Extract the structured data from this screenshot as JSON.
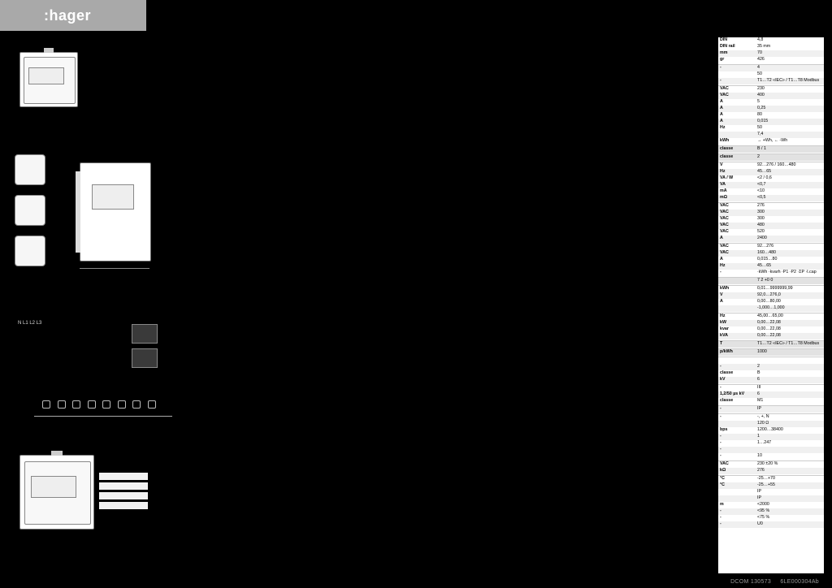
{
  "brand": {
    "name": ":hager"
  },
  "footer": {
    "left": "DCOM 130573",
    "right": "6LE000304Ab"
  },
  "spec_rows": [
    {
      "k": "DIN",
      "v": "4,8",
      "c": ""
    },
    {
      "k": "DIN rail",
      "v": "35 mm",
      "c": ""
    },
    {
      "k": "mm",
      "v": "70",
      "c": "alt"
    },
    {
      "k": "gr",
      "v": "426",
      "c": ""
    },
    {
      "k": "",
      "v": "",
      "c": "sep"
    },
    {
      "k": "-",
      "v": "4",
      "c": "alt"
    },
    {
      "k": "",
      "v": "50",
      "c": ""
    },
    {
      "k": "-",
      "v": "T1…T2 «IEC» / T1…T8 Modbus",
      "c": "alt"
    },
    {
      "k": "",
      "v": "",
      "c": "sep"
    },
    {
      "k": "VAC",
      "v": "230",
      "c": ""
    },
    {
      "k": "VAC",
      "v": "400",
      "c": "alt"
    },
    {
      "k": "A",
      "v": "5",
      "c": ""
    },
    {
      "k": "A",
      "v": "0,25",
      "c": "alt"
    },
    {
      "k": "A",
      "v": "80",
      "c": ""
    },
    {
      "k": "A",
      "v": "0,015",
      "c": "alt"
    },
    {
      "k": "Hz",
      "v": "50",
      "c": ""
    },
    {
      "k": "",
      "v": "7,4",
      "c": "alt"
    },
    {
      "k": "kWh",
      "v": "→ +Wh, ← -Wh",
      "c": ""
    },
    {
      "k": "",
      "v": "",
      "c": "sep"
    },
    {
      "k": "classe",
      "v": "B / 1",
      "c": "alt2"
    },
    {
      "k": "",
      "v": "",
      "c": "sep"
    },
    {
      "k": "classe",
      "v": "2",
      "c": "alt2"
    },
    {
      "k": "",
      "v": "",
      "c": "sep"
    },
    {
      "k": "V",
      "v": "92…276 / 160…480",
      "c": ""
    },
    {
      "k": "Hz",
      "v": "45…65",
      "c": "alt"
    },
    {
      "k": "VA / W",
      "v": "<2 / 0,6",
      "c": ""
    },
    {
      "k": "VA",
      "v": "<0,7",
      "c": "alt"
    },
    {
      "k": "mA",
      "v": "<10",
      "c": ""
    },
    {
      "k": "mΩ",
      "v": "<0,5",
      "c": "alt"
    },
    {
      "k": "",
      "v": "",
      "c": "sep"
    },
    {
      "k": "VAC",
      "v": "276",
      "c": ""
    },
    {
      "k": "VAC",
      "v": "300",
      "c": "alt"
    },
    {
      "k": "VAC",
      "v": "300",
      "c": ""
    },
    {
      "k": "VAC",
      "v": "480",
      "c": "alt"
    },
    {
      "k": "VAC",
      "v": "520",
      "c": ""
    },
    {
      "k": "A",
      "v": "2400",
      "c": "alt"
    },
    {
      "k": "",
      "v": "",
      "c": "sep"
    },
    {
      "k": "VAC",
      "v": "92…276",
      "c": ""
    },
    {
      "k": "VAC",
      "v": "160…480",
      "c": "alt"
    },
    {
      "k": "A",
      "v": "0,015…80",
      "c": ""
    },
    {
      "k": "Hz",
      "v": "45…65",
      "c": "alt"
    },
    {
      "k": "-",
      "v": "·kWh ·kvarh ·P1 ·P2 ·ΣP ·I.cap",
      "c": ""
    },
    {
      "k": "",
      "v": "",
      "c": "sep"
    },
    {
      "k": "",
      "v": "7 2 +0 0",
      "c": "alt2"
    },
    {
      "k": "",
      "v": "",
      "c": "sep"
    },
    {
      "k": "kWh",
      "v": "0,01…9999999,99",
      "c": ""
    },
    {
      "k": "V",
      "v": "92,0…276,0",
      "c": "alt"
    },
    {
      "k": "A",
      "v": "0,00…80,00",
      "c": ""
    },
    {
      "k": "",
      "v": "-1,000…1,000",
      "c": "alt"
    },
    {
      "k": "",
      "v": "",
      "c": "sep"
    },
    {
      "k": "Hz",
      "v": "45,00…65,00",
      "c": ""
    },
    {
      "k": "kW",
      "v": "0,00…22,08",
      "c": "alt"
    },
    {
      "k": "kvar",
      "v": "0,00…22,08",
      "c": ""
    },
    {
      "k": "kVA",
      "v": "0,00…22,08",
      "c": "alt"
    },
    {
      "k": "",
      "v": "",
      "c": "sep"
    },
    {
      "k": "T",
      "v": "T1…T2 «IEC» / T1…T8 Modbus",
      "c": "alt2"
    },
    {
      "k": "",
      "v": "",
      "c": "sep"
    },
    {
      "k": "p/kWh",
      "v": "1000",
      "c": "alt2"
    },
    {
      "k": "",
      "v": "",
      "c": "sep"
    },
    {
      "k": "",
      "v": "",
      "c": ""
    },
    {
      "k": "-",
      "v": "2",
      "c": "alt"
    },
    {
      "k": "classe",
      "v": "B",
      "c": ""
    },
    {
      "k": "kV",
      "v": "6",
      "c": "alt"
    },
    {
      "k": "",
      "v": "",
      "c": "sep"
    },
    {
      "k": "-",
      "v": "III",
      "c": ""
    },
    {
      "k": "1,2/50 µs kV",
      "v": "6",
      "c": "alt"
    },
    {
      "k": "classe",
      "v": "M1",
      "c": ""
    },
    {
      "k": "",
      "v": "",
      "c": "sep"
    },
    {
      "k": "-",
      "v": "IP",
      "c": "alt"
    },
    {
      "k": "",
      "v": "",
      "c": "sep"
    },
    {
      "k": "-",
      "v": "-, +, N",
      "c": ""
    },
    {
      "k": "",
      "v": "120 Ω",
      "c": "alt"
    },
    {
      "k": "bps",
      "v": "1200…38400",
      "c": ""
    },
    {
      "k": "-",
      "v": "1",
      "c": "alt"
    },
    {
      "k": "-",
      "v": "1…247",
      "c": ""
    },
    {
      "k": "-",
      "v": "",
      "c": "alt"
    },
    {
      "k": "-",
      "v": "10",
      "c": ""
    },
    {
      "k": "",
      "v": "",
      "c": "sep"
    },
    {
      "k": "VAC",
      "v": "230 ±20 %",
      "c": ""
    },
    {
      "k": "kΩ",
      "v": "276",
      "c": "alt"
    },
    {
      "k": "",
      "v": "",
      "c": "sep"
    },
    {
      "k": "°C",
      "v": "-25…+70",
      "c": ""
    },
    {
      "k": "°C",
      "v": "-25…+55",
      "c": "alt"
    },
    {
      "k": "",
      "v": "IP",
      "c": ""
    },
    {
      "k": "",
      "v": "IP",
      "c": "alt"
    },
    {
      "k": "m",
      "v": "<2000",
      "c": ""
    },
    {
      "k": "-",
      "v": "<95 %",
      "c": "alt"
    },
    {
      "k": "-",
      "v": "<75 %",
      "c": ""
    },
    {
      "k": "-",
      "v": "U0",
      "c": "alt"
    }
  ]
}
